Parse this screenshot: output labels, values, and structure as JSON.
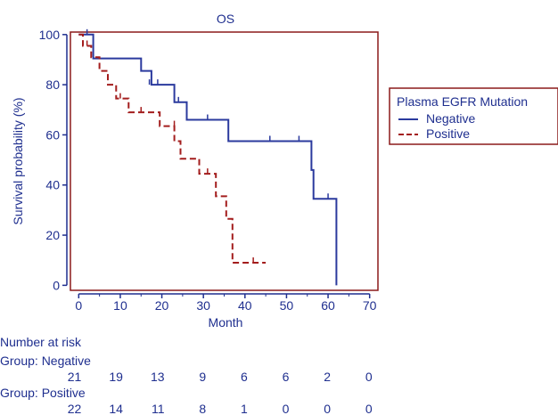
{
  "chart_data": {
    "type": "line",
    "title": "OS",
    "xlabel": "Month",
    "ylabel": "Survival probability (%)",
    "xlim": [
      -2,
      72
    ],
    "ylim": [
      -2,
      101
    ],
    "x_ticks": [
      0,
      10,
      20,
      30,
      40,
      50,
      60,
      70
    ],
    "y_ticks": [
      0,
      20,
      40,
      60,
      80,
      100
    ],
    "grid": false,
    "legend_position": "right",
    "legend_title": "Plasma EGFR Mutation",
    "series": [
      {
        "name": "Negative",
        "color": "#2b3a9e",
        "dash": "solid",
        "steps": [
          [
            0,
            100
          ],
          [
            3.5,
            100
          ],
          [
            3.5,
            90.5
          ],
          [
            15,
            90.5
          ],
          [
            15,
            85.5
          ],
          [
            17.5,
            85.5
          ],
          [
            17.5,
            80
          ],
          [
            23,
            80
          ],
          [
            23,
            73
          ],
          [
            26,
            73
          ],
          [
            26,
            66
          ],
          [
            36,
            66
          ],
          [
            36,
            57.5
          ],
          [
            56,
            57.5
          ],
          [
            56,
            46
          ],
          [
            56.5,
            46
          ],
          [
            56.5,
            34.5
          ],
          [
            62,
            34.5
          ],
          [
            62,
            0
          ]
        ],
        "censored": [
          [
            2,
            100
          ],
          [
            17,
            80
          ],
          [
            19,
            80
          ],
          [
            24,
            73
          ],
          [
            31,
            66
          ],
          [
            46,
            57.5
          ],
          [
            53,
            57.5
          ],
          [
            60,
            34.5
          ]
        ]
      },
      {
        "name": "Positive",
        "color": "#a31d1d",
        "dash": "dashed",
        "steps": [
          [
            0,
            100
          ],
          [
            1,
            100
          ],
          [
            1,
            95.5
          ],
          [
            3,
            95.5
          ],
          [
            3,
            91
          ],
          [
            5,
            91
          ],
          [
            5,
            85.5
          ],
          [
            7,
            85.5
          ],
          [
            7,
            80
          ],
          [
            9,
            80
          ],
          [
            9,
            74.5
          ],
          [
            12,
            74.5
          ],
          [
            12,
            69
          ],
          [
            19.5,
            69
          ],
          [
            19.5,
            63.5
          ],
          [
            23,
            63.5
          ],
          [
            23,
            57.5
          ],
          [
            24.5,
            57.5
          ],
          [
            24.5,
            50.5
          ],
          [
            29,
            50.5
          ],
          [
            29,
            44.5
          ],
          [
            33,
            44.5
          ],
          [
            33,
            35.5
          ],
          [
            35.5,
            35.5
          ],
          [
            35.5,
            26.5
          ],
          [
            37,
            26.5
          ],
          [
            37,
            9
          ],
          [
            45,
            9
          ]
        ],
        "censored": [
          [
            2,
            95.5
          ],
          [
            10,
            74.5
          ],
          [
            15,
            69
          ],
          [
            23,
            63.5
          ],
          [
            31,
            44.5
          ],
          [
            42,
            9
          ]
        ]
      }
    ],
    "risk_table": {
      "heading": "Number at risk",
      "groups": [
        {
          "label": "Group: Negative",
          "counts": [
            "21",
            "19",
            "13",
            "9",
            "6",
            "6",
            "2",
            "0"
          ]
        },
        {
          "label": "Group: Positive",
          "counts": [
            "22",
            "14",
            "11",
            "8",
            "1",
            "0",
            "0",
            "0"
          ]
        }
      ]
    }
  }
}
